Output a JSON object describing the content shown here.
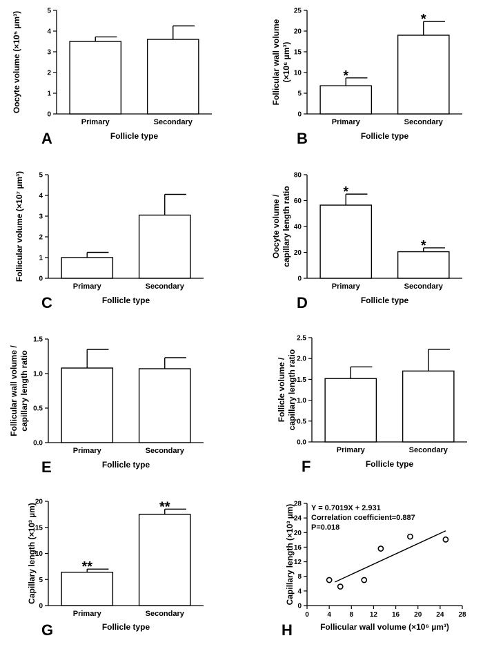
{
  "chart_data": [
    {
      "panel": "A",
      "type": "bar",
      "categories": [
        "Primary",
        "Secondary"
      ],
      "values": [
        3.5,
        3.6
      ],
      "errors": [
        0.22,
        0.65
      ],
      "markers": [
        "",
        ""
      ],
      "ylim": [
        0,
        5
      ],
      "yticks": [
        "0",
        "1",
        "2",
        "3",
        "4",
        "5"
      ],
      "ylabel_lines": [
        "Oocyte volume (×10⁵ µm³)"
      ],
      "xlabel": "Follicle type"
    },
    {
      "panel": "B",
      "type": "bar",
      "categories": [
        "Primary",
        "Secondary"
      ],
      "values": [
        6.8,
        19.0
      ],
      "errors": [
        1.9,
        3.3
      ],
      "markers": [
        "*",
        "*"
      ],
      "ylim": [
        0,
        25
      ],
      "yticks": [
        "0",
        "5",
        "10",
        "15",
        "20",
        "25"
      ],
      "ylabel_lines": [
        "Follicular wall volume",
        "(×10⁶ µm³)"
      ],
      "xlabel": "Follicle type"
    },
    {
      "panel": "C",
      "type": "bar",
      "categories": [
        "Primary",
        "Secondary"
      ],
      "values": [
        1.0,
        3.05
      ],
      "errors": [
        0.25,
        1.0
      ],
      "markers": [
        "",
        ""
      ],
      "ylim": [
        0,
        5
      ],
      "yticks": [
        "0",
        "1",
        "2",
        "3",
        "4",
        "5"
      ],
      "ylabel_lines": [
        "Follicular volume (×10⁷ µm³)"
      ],
      "xlabel": "Follicle type"
    },
    {
      "panel": "D",
      "type": "bar",
      "categories": [
        "Primary",
        "Secondary"
      ],
      "values": [
        56.5,
        20.5
      ],
      "errors": [
        8.5,
        3.0
      ],
      "markers": [
        "*",
        "*"
      ],
      "ylim": [
        0,
        80
      ],
      "yticks": [
        "0",
        "20",
        "40",
        "60",
        "80"
      ],
      "ylabel_lines": [
        "Oocyte volume /",
        "capillary length ratio"
      ],
      "xlabel": "Follicle type"
    },
    {
      "panel": "E",
      "type": "bar",
      "categories": [
        "Primary",
        "Secondary"
      ],
      "values": [
        1.08,
        1.07
      ],
      "errors": [
        0.27,
        0.16
      ],
      "markers": [
        "",
        ""
      ],
      "ylim": [
        0,
        1.5
      ],
      "yticks": [
        "0.0",
        "0.5",
        "1.0",
        "1.5"
      ],
      "ylabel_lines": [
        "Follicular wall volume /",
        "capillary length ratio"
      ],
      "xlabel": "Follicle type"
    },
    {
      "panel": "F",
      "type": "bar",
      "categories": [
        "Primary",
        "Secondary"
      ],
      "values": [
        1.52,
        1.7
      ],
      "errors": [
        0.28,
        0.52
      ],
      "markers": [
        "",
        ""
      ],
      "ylim": [
        0,
        2.5
      ],
      "yticks": [
        "0.0",
        "0.5",
        "1.0",
        "1.5",
        "2.0",
        "2.5"
      ],
      "ylabel_lines": [
        "Follicle volume /",
        "capillary length ratio"
      ],
      "xlabel": "Follicle type"
    },
    {
      "panel": "G",
      "type": "bar",
      "categories": [
        "Primary",
        "Secondary"
      ],
      "values": [
        6.4,
        17.5
      ],
      "errors": [
        0.6,
        1.0
      ],
      "markers": [
        "**",
        "**"
      ],
      "ylim": [
        0,
        20
      ],
      "yticks": [
        "0",
        "5",
        "10",
        "15",
        "20"
      ],
      "ylabel_lines": [
        "Capillary length (×10³ µm)"
      ],
      "xlabel": "Follicle type"
    },
    {
      "panel": "H",
      "type": "scatter",
      "x": [
        4.0,
        6.0,
        10.3,
        13.3,
        18.6,
        25.0
      ],
      "y": [
        7.0,
        5.2,
        7.0,
        15.6,
        18.9,
        18.1
      ],
      "fit": {
        "slope": 0.7019,
        "intercept": 2.931,
        "x_range": [
          5.0,
          25.0
        ]
      },
      "annotations": [
        "Y = 0.7019X + 2.931",
        "Correlation coefficient=0.887",
        "P=0.018"
      ],
      "xlim": [
        0,
        28
      ],
      "xticks": [
        "0",
        "4",
        "8",
        "12",
        "16",
        "20",
        "24",
        "28"
      ],
      "ylim": [
        0,
        28
      ],
      "yticks": [
        "0",
        "4",
        "8",
        "12",
        "16",
        "20",
        "24",
        "28"
      ],
      "ylabel_lines": [
        "Capillary length (×10³ µm)"
      ],
      "xlabel": "Follicular wall volume (×10⁶ µm³)"
    }
  ]
}
